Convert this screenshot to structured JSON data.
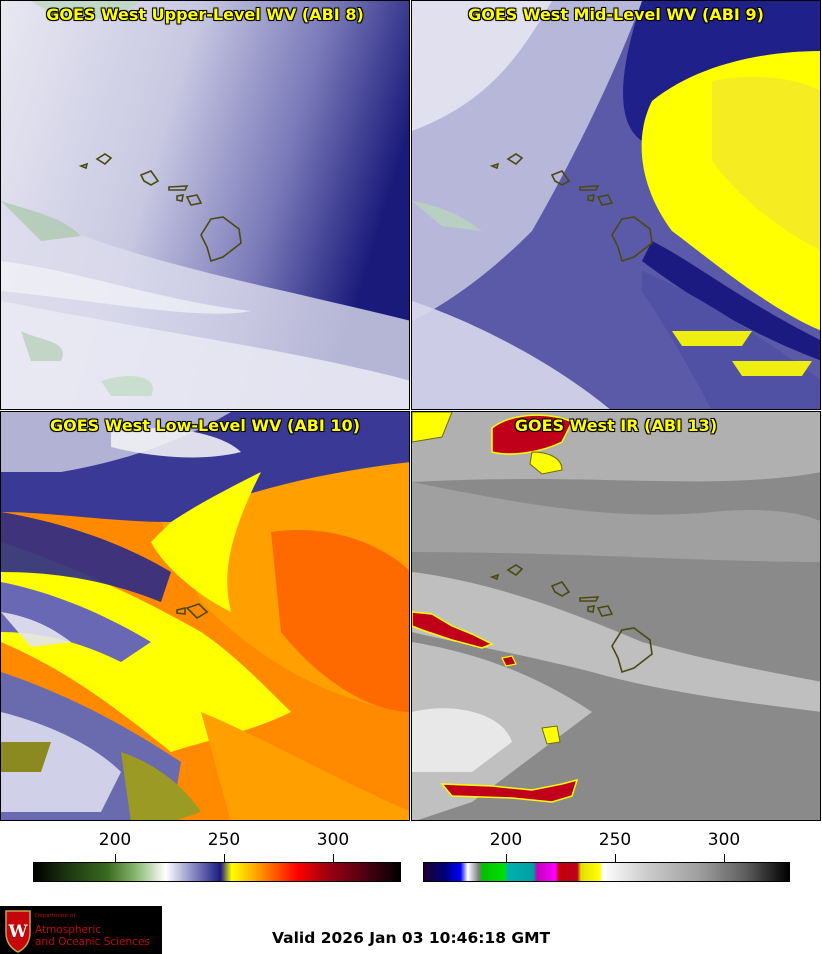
{
  "panels": [
    {
      "title": "GOES West Upper-Level WV (ABI 8)"
    },
    {
      "title": "GOES West Mid-Level WV (ABI 9)"
    },
    {
      "title": "GOES West Low-Level WV (ABI 10)"
    },
    {
      "title": "GOES West IR (ABI 13)"
    }
  ],
  "colorbars": [
    {
      "ticks": [
        "200",
        "250",
        "300"
      ],
      "palette": "wv-enhanced"
    },
    {
      "ticks": [
        "200",
        "250",
        "300"
      ],
      "palette": "ir-enhanced"
    }
  ],
  "logo": {
    "department": "Department of",
    "line1": "Atmospheric",
    "line2": "and Oceanic Sciences",
    "crest_letter": "W"
  },
  "valid": "Valid 2026 Jan 03 10:46:18 GMT",
  "colors": {
    "title_text": "#ffff00",
    "logo_red": "#c5050c",
    "wv_dry": "#ffff00",
    "wv_moist": "#1a1a8a",
    "ir_cold_cloud": "#c0001a"
  }
}
